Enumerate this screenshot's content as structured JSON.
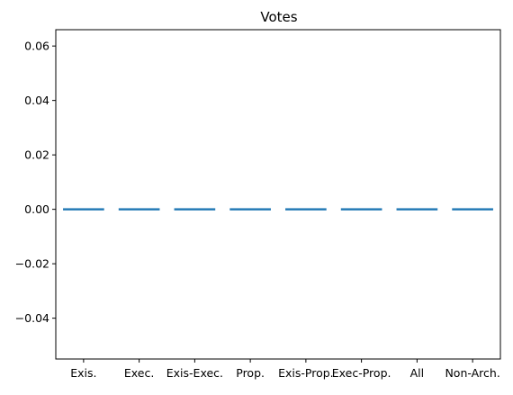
{
  "chart_data": {
    "type": "box",
    "title": "Votes",
    "xlabel": "",
    "ylabel": "",
    "categories": [
      "Exis.",
      "Exec.",
      "Exis-Exec.",
      "Prop.",
      "Exis-Prop.",
      "Exec-Prop.",
      "All",
      "Non-Arch."
    ],
    "series": [
      {
        "values": [
          0,
          0,
          0,
          0,
          0,
          0,
          0,
          0
        ]
      }
    ],
    "ylim": [
      -0.055,
      0.066
    ],
    "yticks": [
      -0.04,
      -0.02,
      0.0,
      0.02,
      0.04,
      0.06
    ],
    "ytick_labels": [
      "−0.04",
      "−0.02",
      "0.00",
      "0.02",
      "0.04",
      "0.06"
    ],
    "grid": false,
    "legend": "none",
    "colors": {
      "box": "#1f77b4",
      "median": "#ff7f0e",
      "axis": "#000000"
    }
  }
}
